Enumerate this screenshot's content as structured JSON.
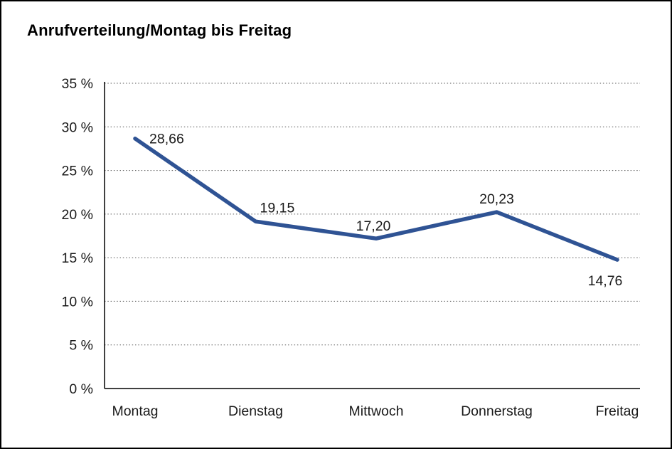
{
  "chart_data": {
    "type": "line",
    "title": "Anrufverteilung/Montag bis Freitag",
    "categories": [
      "Montag",
      "Dienstag",
      "Mittwoch",
      "Donnerstag",
      "Freitag"
    ],
    "values": [
      28.66,
      19.15,
      17.2,
      20.23,
      14.76
    ],
    "data_labels": [
      "28,66",
      "19,15",
      "17,20",
      "20,23",
      "14,76"
    ],
    "xlabel": "",
    "ylabel": "",
    "ylim": [
      0,
      35
    ],
    "ytick_step": 5,
    "ytick_labels": [
      "0 %",
      "5 %",
      "10 %",
      "15 %",
      "20 %",
      "25 %",
      "30 %",
      "35 %"
    ],
    "grid": "horizontal-dotted",
    "legend": "none",
    "line_color": "#2f5394",
    "axis_color": "#000000",
    "text_color": "#1a1a1a"
  }
}
